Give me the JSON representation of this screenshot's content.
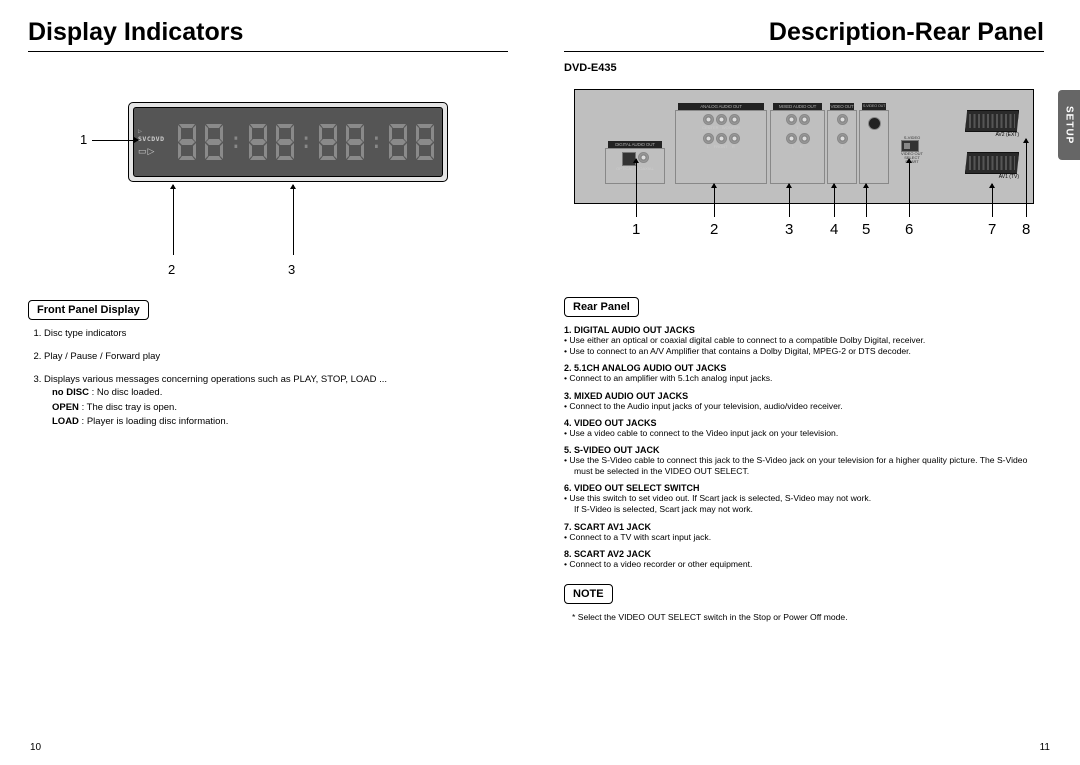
{
  "left": {
    "title": "Display Indicators",
    "section_label": "Front Panel Display",
    "display_text_a": "SVCDVD",
    "items": [
      {
        "text": "Disc type indicators"
      },
      {
        "text": "Play / Pause / Forward play"
      },
      {
        "text": "Displays various messages concerning operations such as PLAY, STOP, LOAD ..."
      }
    ],
    "subitems": [
      {
        "label": "no DISC",
        "text": " : No disc loaded."
      },
      {
        "label": "OPEN",
        "text": " : The disc tray is open."
      },
      {
        "label": "LOAD",
        "text": " : Player is loading disc information."
      }
    ],
    "page_num": "10",
    "callouts": [
      "1",
      "2",
      "3"
    ]
  },
  "right": {
    "title": "Description-Rear Panel",
    "model": "DVD-E435",
    "tab": "SETUP",
    "section_label": "Rear Panel",
    "panel_labels": {
      "analog": "ANALOG AUDIO OUT",
      "mixed": "MIXED AUDIO OUT",
      "video": "VIDEO OUT",
      "svideo": "S-VIDEO OUT",
      "digital": "DIGITAL AUDIO OUT",
      "av2": "AV2\n(EXT)",
      "av1": "AV1\n(TV)"
    },
    "callouts": [
      "1",
      "2",
      "3",
      "4",
      "5",
      "6",
      "7",
      "8"
    ],
    "items": [
      {
        "h": "1. DIGITAL AUDIO OUT JACKS",
        "d": [
          "Use either an optical or coaxial digital cable to connect to a compatible Dolby Digital, receiver.",
          "Use to connect to an A/V Amplifier that contains a Dolby Digital, MPEG-2 or DTS decoder."
        ]
      },
      {
        "h": "2. 5.1CH ANALOG AUDIO OUT JACKS",
        "d": [
          "Connect to an amplifier with 5.1ch analog input jacks."
        ]
      },
      {
        "h": "3. MIXED AUDIO OUT JACKS",
        "d": [
          "Connect to the Audio input jacks of your television, audio/video receiver."
        ]
      },
      {
        "h": "4. VIDEO OUT JACKS",
        "d": [
          "Use a video cable to connect to the Video input jack on your television."
        ]
      },
      {
        "h": "5. S-VIDEO OUT JACK",
        "d": [
          "Use the S-Video cable to connect this jack to the S-Video jack on your television for a higher quality picture. The S-Video must be selected in the VIDEO OUT SELECT."
        ]
      },
      {
        "h": "6. VIDEO OUT SELECT SWITCH",
        "d": [
          "Use this switch to set video out. If Scart jack is selected, S-Video may not work.\nIf S-Video is selected, Scart jack may not work."
        ]
      },
      {
        "h": "7. SCART AV1 JACK",
        "d": [
          "Connect to a TV with scart input jack."
        ]
      },
      {
        "h": "8. SCART AV2 JACK",
        "d": [
          "Connect to a video recorder or other equipment."
        ]
      }
    ],
    "note_label": "NOTE",
    "note_text": "* Select the VIDEO OUT SELECT switch in the Stop or Power Off mode.",
    "page_num": "11"
  },
  "style": {
    "seg_color": "#8a8a8a",
    "lcd_bg": "#555555",
    "chassis_bg": "#bfbfbf"
  }
}
